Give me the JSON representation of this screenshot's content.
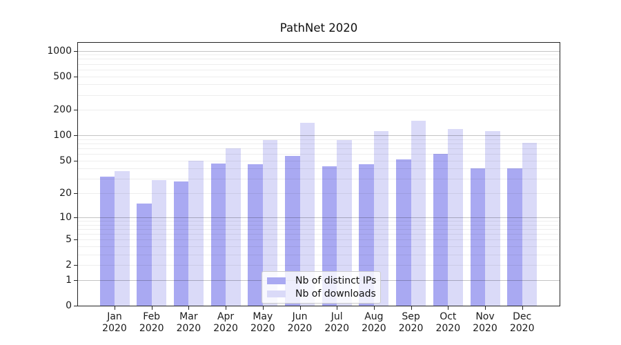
{
  "title": "PathNet 2020",
  "chart_data": {
    "type": "bar",
    "title": "PathNet 2020",
    "y_scale": "log1p",
    "ylim": [
      0,
      1240
    ],
    "grid": true,
    "yticks": [
      0,
      1,
      2,
      5,
      10,
      20,
      50,
      100,
      200,
      500,
      1000
    ],
    "major_gridlines": [
      1,
      10,
      100,
      1000
    ],
    "minor_gridlines": [
      2,
      3,
      4,
      5,
      6,
      7,
      8,
      9,
      20,
      30,
      40,
      50,
      60,
      70,
      80,
      90,
      200,
      300,
      400,
      500,
      600,
      700,
      800,
      900
    ],
    "categories": [
      "Jan",
      "Feb",
      "Mar",
      "Apr",
      "May",
      "Jun",
      "Jul",
      "Aug",
      "Sep",
      "Oct",
      "Nov",
      "Dec"
    ],
    "xtick_year": "2020",
    "series": [
      {
        "name": "Nb of distinct IPs",
        "slug": "distinct-ips",
        "color": "#a9a9f2",
        "values": [
          32,
          15,
          28,
          46,
          45,
          57,
          43,
          45,
          52,
          60,
          40,
          40
        ]
      },
      {
        "name": "Nb of downloads",
        "slug": "downloads",
        "color": "#dadaf8",
        "values": [
          37,
          29,
          50,
          70,
          88,
          140,
          88,
          112,
          150,
          120,
          112,
          82
        ]
      }
    ],
    "legend": {
      "position": "lower-center",
      "entries": [
        "Nb of distinct IPs",
        "Nb of downloads"
      ]
    },
    "colors": {
      "major_grid": "#c4c4c4",
      "minor_grid": "#ededed",
      "spine": "#222222",
      "text": "#1a1a1a"
    }
  }
}
